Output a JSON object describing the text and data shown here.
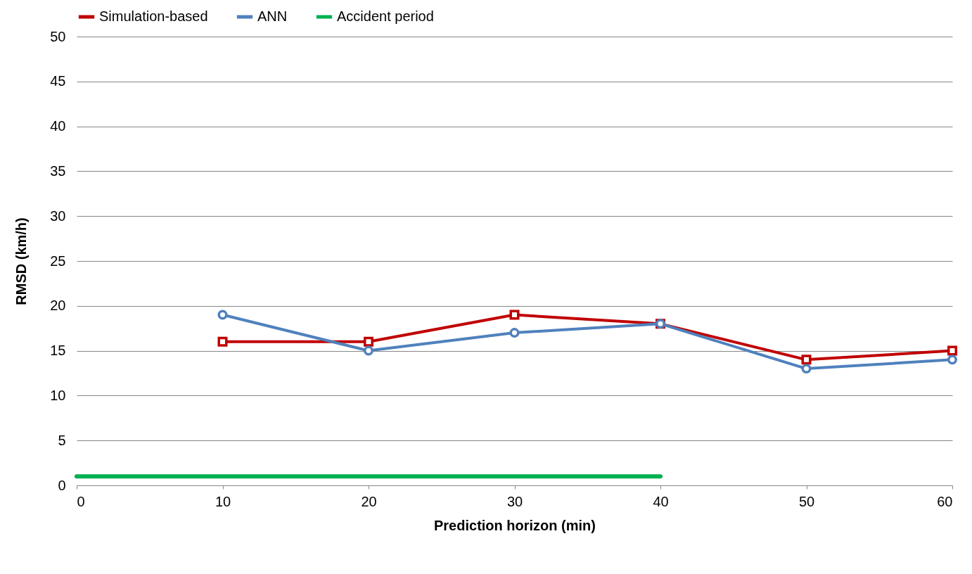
{
  "chart_data": {
    "type": "line",
    "xlabel": "Prediction horizon (min)",
    "ylabel": "RMSD (km/h)",
    "x": [
      10,
      20,
      30,
      40,
      50,
      60
    ],
    "series": [
      {
        "name": "Simulation-based",
        "color": "#c00000",
        "marker": "square",
        "values": [
          16,
          16,
          19,
          18,
          14,
          15
        ]
      },
      {
        "name": "ANN",
        "color": "#4f81bd",
        "marker": "circle",
        "values": [
          19,
          15,
          17,
          18,
          13,
          14
        ]
      },
      {
        "name": "Accident period",
        "color": "#00b050",
        "marker": "none",
        "x": [
          0,
          40
        ],
        "values": [
          1,
          1
        ]
      }
    ],
    "xlim": [
      0,
      60
    ],
    "xticks": [
      0,
      10,
      20,
      30,
      40,
      50,
      60
    ],
    "ylim": [
      0,
      50
    ],
    "yticks": [
      0,
      5,
      10,
      15,
      20,
      25,
      30,
      35,
      40,
      45,
      50
    ],
    "grid": "y",
    "legend": "top"
  }
}
